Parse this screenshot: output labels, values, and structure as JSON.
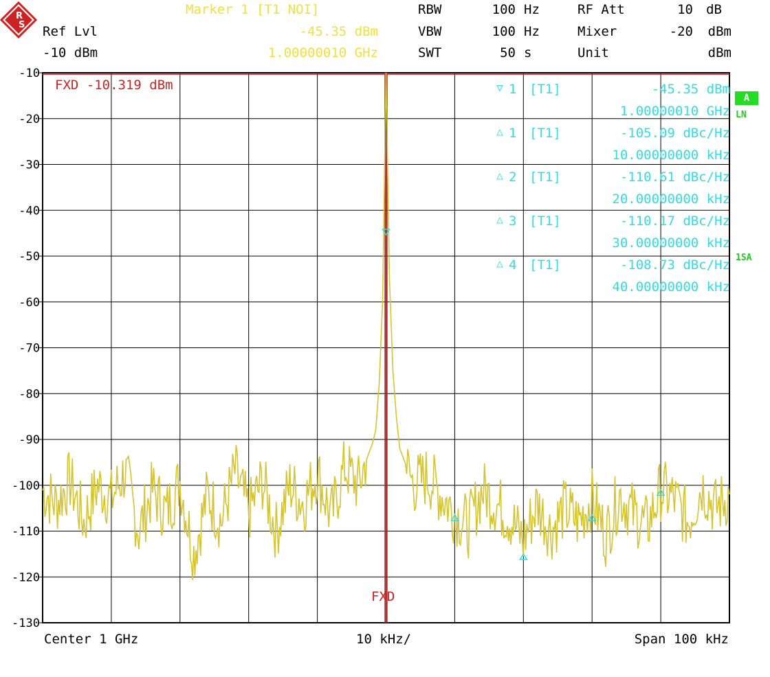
{
  "header": {
    "marker_title": "Marker 1 [T1 NOI]",
    "marker_value": "-45.35 dBm",
    "marker_freq": "1.00000010 GHz",
    "ref_lvl_label": "Ref Lvl",
    "ref_lvl_value": "-10 dBm",
    "rbw_label": "RBW",
    "rbw_value": "100",
    "rbw_unit": "Hz",
    "vbw_label": "VBW",
    "vbw_value": "100",
    "vbw_unit": "Hz",
    "swt_label": "SWT",
    "swt_value": "50",
    "swt_unit": "s",
    "rfatt_label": "RF Att",
    "rfatt_value": "10",
    "rfatt_unit": "dB",
    "mixer_label": "Mixer",
    "mixer_value": "-20",
    "mixer_unit": "dBm",
    "unit_label": "Unit",
    "unit_value": "dBm"
  },
  "side": {
    "badge": "A",
    "ln": "LN",
    "sa": "1SA"
  },
  "footer": {
    "center": "Center 1 GHz",
    "div": "10 kHz/",
    "span": "Span 100 kHz"
  },
  "fxd": {
    "label": "FXD -10.319 dBm",
    "bottom_label": "FXD"
  },
  "marker_table": [
    {
      "symbol": "▽",
      "num": "1",
      "trace": "[T1]",
      "value": "-45.35 dBm",
      "pos": "1.00000010 GHz"
    },
    {
      "symbol": "△",
      "num": "1",
      "trace": "[T1]",
      "value": "-105.09 dBc/Hz",
      "pos": "10.00000000 kHz"
    },
    {
      "symbol": "△",
      "num": "2",
      "trace": "[T1]",
      "value": "-110.61 dBc/Hz",
      "pos": "20.00000000 kHz"
    },
    {
      "symbol": "△",
      "num": "3",
      "trace": "[T1]",
      "value": "-110.17 dBc/Hz",
      "pos": "30.00000000 kHz"
    },
    {
      "symbol": "△",
      "num": "4",
      "trace": "[T1]",
      "value": "-108.73 dBc/Hz",
      "pos": "40.00000000 kHz"
    }
  ],
  "colors": {
    "trace": "#d4c430",
    "grid": "#000000",
    "marker": "#33dddd",
    "fxd": "#cc2222"
  },
  "chart_data": {
    "type": "line",
    "xlabel": "",
    "ylabel": "",
    "xlim": [
      -50,
      50
    ],
    "ylim": [
      -130,
      -10
    ],
    "y_ticks": [
      -10,
      -20,
      -30,
      -40,
      -50,
      -60,
      -70,
      -80,
      -90,
      -100,
      -110,
      -120,
      -130
    ],
    "grid": true,
    "fxd_level": -10.319,
    "fxd_freq_offset_khz": 0,
    "markers": [
      {
        "name": "1",
        "x": 0,
        "y": -45.35
      },
      {
        "name": "D1",
        "x": 10,
        "y": -106.5
      },
      {
        "name": "D2",
        "x": 20,
        "y": -115
      },
      {
        "name": "D3",
        "x": 30,
        "y": -106.5
      },
      {
        "name": "D4",
        "x": 40,
        "y": -101
      }
    ],
    "series": [
      {
        "x_unit": "kHz offset",
        "x": [
          -50,
          -48,
          -46,
          -44,
          -42,
          -40,
          -38,
          -36,
          -34,
          -32,
          -30,
          -28,
          -26,
          -24,
          -22,
          -20,
          -18,
          -16,
          -14,
          -12,
          -10,
          -8,
          -6,
          -4,
          -3,
          -2,
          -1.5,
          -1,
          -0.5,
          0,
          0.5,
          1,
          1.5,
          2,
          3,
          4,
          6,
          8,
          10,
          12,
          14,
          16,
          18,
          20,
          22,
          24,
          26,
          28,
          30,
          32,
          34,
          36,
          38,
          40,
          42,
          44,
          46,
          48,
          50
        ],
        "values": [
          -101,
          -104,
          -99,
          -108,
          -100,
          -103,
          -97,
          -110,
          -101,
          -106,
          -99,
          -115,
          -102,
          -108,
          -97,
          -106,
          -99,
          -110,
          -100,
          -104,
          -97,
          -107,
          -96,
          -100,
          -95,
          -91,
          -88,
          -78,
          -60,
          -10,
          -55,
          -75,
          -85,
          -92,
          -96,
          -100,
          -98,
          -102,
          -106,
          -109,
          -101,
          -104,
          -107,
          -112,
          -104,
          -110,
          -105,
          -108,
          -103,
          -111,
          -102,
          -106,
          -109,
          -101,
          -103,
          -108,
          -100,
          -105,
          -102
        ]
      }
    ]
  }
}
